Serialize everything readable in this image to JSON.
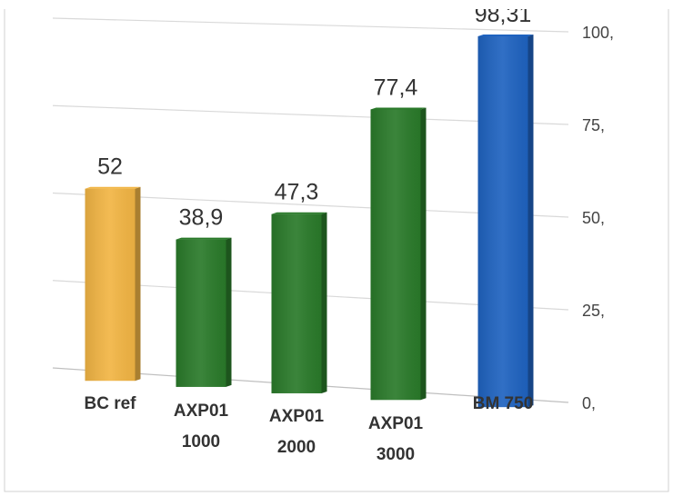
{
  "chart_data": {
    "type": "bar",
    "title": "",
    "categories": [
      [
        "BC ref"
      ],
      [
        "AXP01",
        "1000"
      ],
      [
        "AXP01",
        "2000"
      ],
      [
        "AXP01",
        "3000"
      ],
      [
        "BM 750"
      ]
    ],
    "values": [
      52,
      38.9,
      47.3,
      77.4,
      98.31
    ],
    "value_labels": [
      "52",
      "38,9",
      "47,3",
      "77,4",
      "98,31"
    ],
    "bar_colors": [
      "#f2b544",
      "#2a7a2a",
      "#2a7a2a",
      "#2a7a2a",
      "#1f63c0"
    ],
    "ylim": [
      0,
      100
    ],
    "yticks": [
      0,
      25,
      50,
      75,
      100
    ],
    "ytick_labels": [
      "0,",
      "25,",
      "50,",
      "75,",
      "100,"
    ],
    "y_axis_side": "right",
    "grid": true,
    "perspective": "3d",
    "xlabel": "",
    "ylabel": ""
  }
}
